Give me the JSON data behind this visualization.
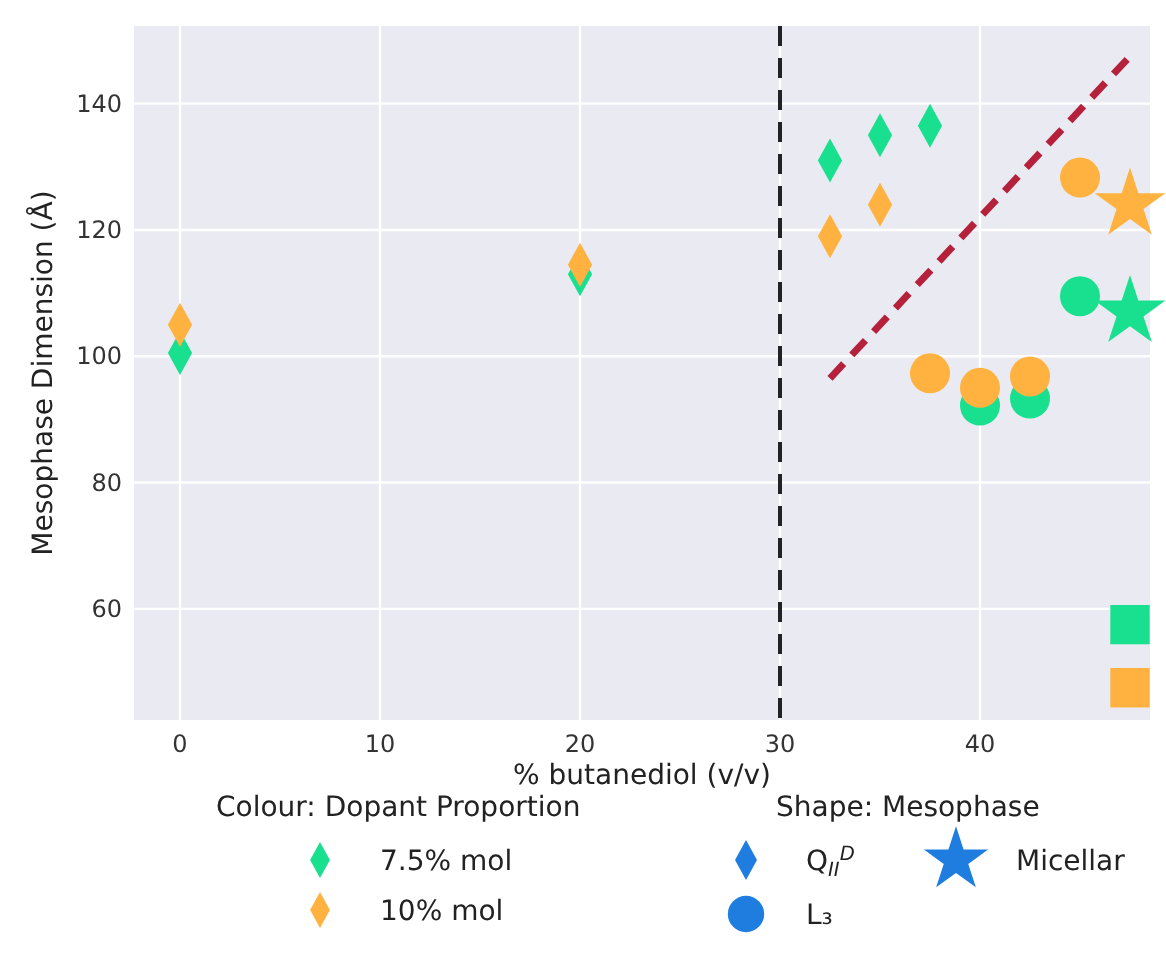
{
  "chart_data": {
    "type": "scatter",
    "xlabel": "% butanediol (v/v)",
    "ylabel": "Mesophase Dimension (Å)",
    "xlim": [
      -2.3,
      48.5
    ],
    "ylim": [
      42.4,
      152.3
    ],
    "xticks": [
      0,
      10,
      20,
      30,
      40
    ],
    "yticks": [
      60,
      80,
      100,
      120,
      140
    ],
    "grid": true,
    "legend": "bottom",
    "legend_title": "Colour: Dopant Proportion",
    "annotations": [
      "Shape: Mesophase"
    ],
    "series": [
      {
        "name": "7.5% mol",
        "color": "#19e08f",
        "marker": "diamond",
        "x": [
          0,
          20,
          32.5,
          35,
          37.5
        ],
        "values": [
          100.5,
          113,
          131,
          135,
          136.5
        ]
      },
      {
        "name": "10% mol",
        "color": "#ffb240",
        "marker": "diamond",
        "x": [
          0,
          20,
          32.5,
          35
        ],
        "values": [
          105,
          114.5,
          119,
          124
        ]
      },
      {
        "color": "#19e08f",
        "marker": "circle",
        "x": [
          40,
          42.5,
          45
        ],
        "values": [
          92.2,
          93.3,
          109.5
        ]
      },
      {
        "color": "#ffb240",
        "marker": "circle",
        "x": [
          37.5,
          40,
          42.5,
          45
        ],
        "values": [
          97.3,
          95,
          96.8,
          128.3
        ]
      },
      {
        "color": "#19e08f",
        "marker": "star",
        "x": [
          47.5
        ],
        "values": [
          107
        ]
      },
      {
        "color": "#ffb240",
        "marker": "star",
        "x": [
          47.5
        ],
        "values": [
          124
        ]
      },
      {
        "color": "#19e08f",
        "marker": "square",
        "x": [
          47.5
        ],
        "values": [
          57.5
        ]
      },
      {
        "color": "#ffb240",
        "marker": "square",
        "x": [
          47.5
        ],
        "values": [
          47.5
        ]
      },
      {
        "type": "line",
        "color": "#b5213a",
        "line_style": "dashed",
        "x": [
          32.5,
          47.5
        ],
        "values": [
          96.5,
          147.5
        ]
      },
      {
        "name": "Q$_{II}$$^{D}$",
        "color": "#1f7de0",
        "marker": "diamond"
      },
      {
        "name": "L₃",
        "color": "#1f7de0",
        "marker": "circle"
      },
      {
        "name": "Micellar",
        "color": "#1f7de0",
        "marker": "star"
      }
    ],
    "ref_lines": [
      {
        "axis": "x",
        "value": 30,
        "color": "#222222",
        "line_style": "dashed"
      }
    ]
  }
}
